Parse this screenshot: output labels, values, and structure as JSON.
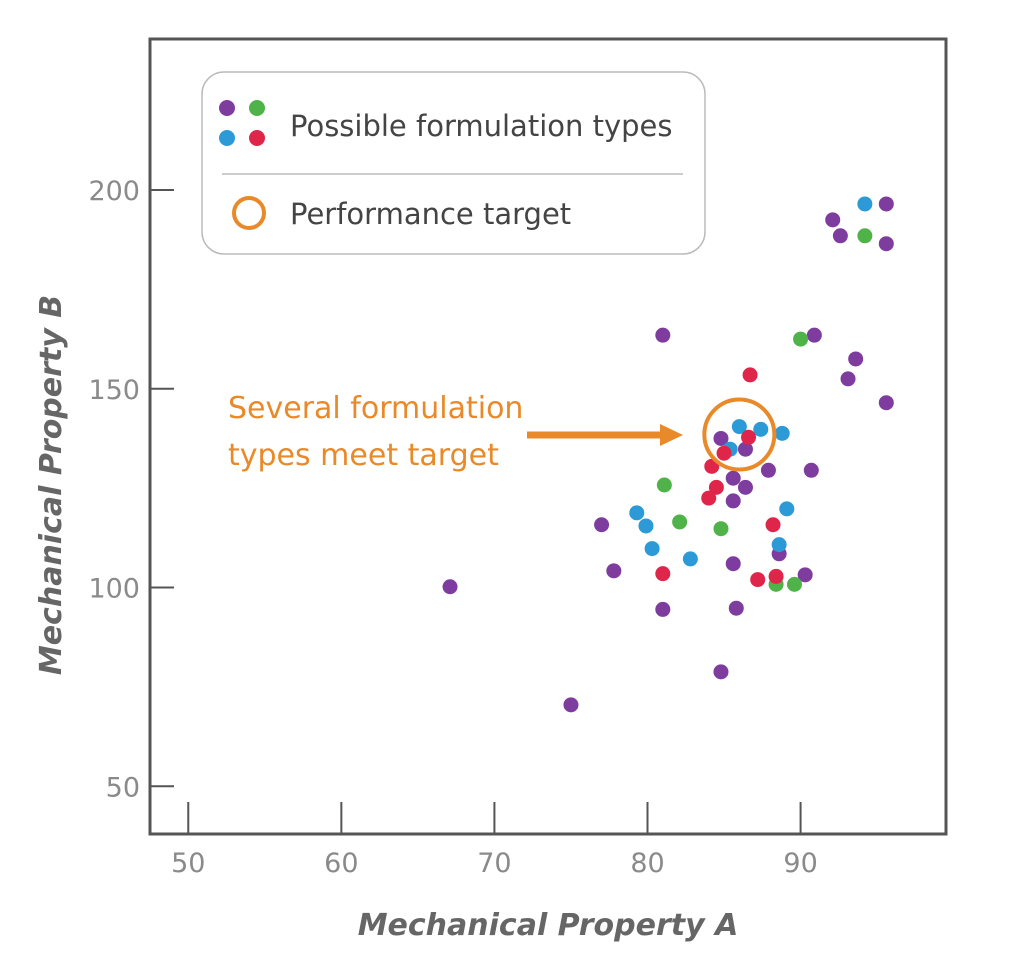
{
  "chart_data": {
    "type": "scatter",
    "xlabel": "Mechanical Property A",
    "ylabel": "Mechanical Property B",
    "xlim": [
      47.5,
      99.5
    ],
    "ylim": [
      38,
      238
    ],
    "x_ticks": [
      50,
      60,
      70,
      80,
      90
    ],
    "y_ticks": [
      50,
      100,
      150,
      200
    ],
    "grid": false,
    "legend": {
      "placement": "top-left",
      "entries": [
        {
          "label": "Possible formulation types",
          "marker": "four-color-dots"
        },
        {
          "label": "Performance target",
          "marker": "open-circle"
        }
      ]
    },
    "colors": {
      "purple": "#7e3d9e",
      "green": "#4fb34a",
      "blue": "#2c9ad6",
      "red": "#e0254a",
      "orange": "#e98a2a"
    },
    "series": [
      {
        "color": "purple",
        "points": [
          [
            67.1,
            100.2
          ],
          [
            75.0,
            70.5
          ],
          [
            77.0,
            115.8
          ],
          [
            77.8,
            104.2
          ],
          [
            81.0,
            163.5
          ],
          [
            81.0,
            94.5
          ],
          [
            84.8,
            78.8
          ],
          [
            84.8,
            137.5
          ],
          [
            85.6,
            127.5
          ],
          [
            85.6,
            121.8
          ],
          [
            85.6,
            106.0
          ],
          [
            85.8,
            94.8
          ],
          [
            86.4,
            134.8
          ],
          [
            86.4,
            125.2
          ],
          [
            87.9,
            129.5
          ],
          [
            88.6,
            108.5
          ],
          [
            90.3,
            103.2
          ],
          [
            90.7,
            129.5
          ],
          [
            90.9,
            163.5
          ],
          [
            92.1,
            192.5
          ],
          [
            92.6,
            188.5
          ],
          [
            93.1,
            152.5
          ],
          [
            93.6,
            157.5
          ],
          [
            95.6,
            196.5
          ],
          [
            95.6,
            186.5
          ],
          [
            95.6,
            146.5
          ]
        ]
      },
      {
        "color": "green",
        "points": [
          [
            81.1,
            125.8
          ],
          [
            82.1,
            116.5
          ],
          [
            84.8,
            114.8
          ],
          [
            88.4,
            100.8
          ],
          [
            89.6,
            100.8
          ],
          [
            90.0,
            162.5
          ],
          [
            94.2,
            188.5
          ]
        ]
      },
      {
        "color": "blue",
        "points": [
          [
            79.3,
            118.8
          ],
          [
            79.9,
            115.5
          ],
          [
            80.3,
            109.8
          ],
          [
            82.8,
            107.2
          ],
          [
            85.4,
            134.8
          ],
          [
            86.0,
            140.5
          ],
          [
            87.4,
            139.8
          ],
          [
            88.8,
            138.8
          ],
          [
            88.6,
            110.8
          ],
          [
            89.1,
            119.8
          ],
          [
            94.2,
            196.5
          ]
        ]
      },
      {
        "color": "red",
        "points": [
          [
            81.0,
            103.5
          ],
          [
            84.0,
            122.5
          ],
          [
            84.2,
            130.5
          ],
          [
            84.5,
            125.2
          ],
          [
            85.0,
            133.8
          ],
          [
            86.6,
            137.8
          ],
          [
            86.7,
            153.5
          ],
          [
            87.2,
            102.0
          ],
          [
            88.2,
            115.8
          ],
          [
            88.4,
            102.8
          ]
        ]
      }
    ],
    "target": {
      "x": 86.0,
      "y": 138.5,
      "label": "Performance target"
    },
    "annotation": {
      "lines": [
        "Several formulation",
        "types meet target"
      ],
      "points_to": "target"
    }
  }
}
